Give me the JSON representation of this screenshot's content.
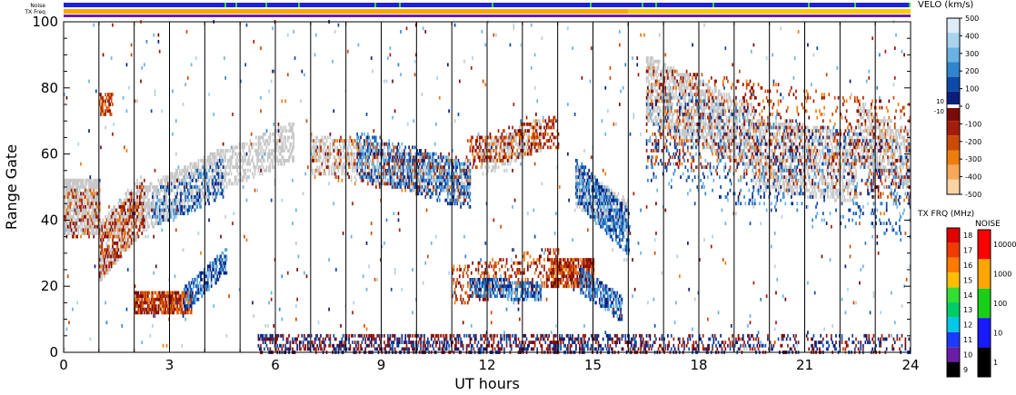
{
  "status_bars": {
    "noise_label": "Noise",
    "txfreq_label": "TX Freq"
  },
  "chart_data": {
    "type": "heatmap",
    "title": "",
    "xlabel": "UT hours",
    "ylabel": "Range Gate",
    "xlim": [
      0,
      24
    ],
    "ylim": [
      0,
      100
    ],
    "x_ticks": [
      "0",
      "3",
      "6",
      "9",
      "12",
      "15",
      "18",
      "21",
      "24"
    ],
    "x_tick_values": [
      0,
      3,
      6,
      9,
      12,
      15,
      18,
      21,
      24
    ],
    "y_ticks": [
      "0",
      "20",
      "40",
      "60",
      "80",
      "100"
    ],
    "y_tick_values": [
      0,
      20,
      40,
      60,
      80,
      100
    ],
    "hour_gridlines": true,
    "velocity_colorbar": {
      "label": "VELO (km/s)",
      "ticks": [
        "500",
        "400",
        "300",
        "200",
        "100",
        "0",
        "-100",
        "-200",
        "-300",
        "-400",
        "-500"
      ],
      "tick_values": [
        500,
        400,
        300,
        200,
        100,
        0,
        -100,
        -200,
        -300,
        -400,
        -500
      ],
      "zero_band_labels": [
        "10",
        "-10"
      ],
      "colors": [
        "#dcecf8",
        "#a8d3ef",
        "#6ab2e2",
        "#2f86cf",
        "#0b4aa8",
        "#0a1e7a",
        "#7a0a0a",
        "#a41c0a",
        "#cc4a08",
        "#ee7d10",
        "#f7a85a",
        "#fbd4a4"
      ]
    },
    "txfreq_colorbar": {
      "label": "TX FRQ (MHz)",
      "ticks": [
        "18",
        "17",
        "16",
        "15",
        "14",
        "13",
        "12",
        "11",
        "10",
        "9"
      ],
      "colors": [
        "#e00000",
        "#f03a00",
        "#ff7a00",
        "#ffbe00",
        "#33dd33",
        "#00cc66",
        "#00c8e8",
        "#1a3cff",
        "#6a1ea8",
        "#000000"
      ]
    },
    "noise_colorbar": {
      "label": "NOISE",
      "ticks": [
        "10000",
        "1000",
        "100",
        "10",
        "1"
      ],
      "colors": [
        "#ff0000",
        "#ffa500",
        "#19d019",
        "#1919ff",
        "#000000"
      ]
    },
    "regions": [
      {
        "kind": "ground_scatter",
        "hours": [
          0.0,
          1.0
        ],
        "gate_center": [
          44,
          44
        ],
        "gate_halfwidth": 8,
        "density": 0.8
      },
      {
        "kind": "ground_scatter",
        "hours": [
          1.0,
          2.2
        ],
        "gate_center": [
          30,
          45
        ],
        "gate_halfwidth": 8,
        "density": 0.6
      },
      {
        "kind": "ground_scatter",
        "hours": [
          2.2,
          4.5
        ],
        "gate_center": [
          43,
          55
        ],
        "gate_halfwidth": 6,
        "density": 0.6
      },
      {
        "kind": "ground_scatter",
        "hours": [
          4.5,
          6.5
        ],
        "gate_center": [
          55,
          64
        ],
        "gate_halfwidth": 5,
        "density": 0.5
      },
      {
        "kind": "ground_scatter",
        "hours": [
          7.0,
          11.5
        ],
        "gate_center": [
          60,
          52
        ],
        "gate_halfwidth": 5,
        "density": 0.5
      },
      {
        "kind": "ground_scatter",
        "hours": [
          11.8,
          13.5
        ],
        "gate_center": [
          58,
          66
        ],
        "gate_halfwidth": 4,
        "density": 0.5
      },
      {
        "kind": "ground_scatter",
        "hours": [
          14.5,
          16.0
        ],
        "gate_center": [
          50,
          40
        ],
        "gate_halfwidth": 5,
        "density": 0.6
      },
      {
        "kind": "ground_scatter",
        "hours": [
          16.5,
          19.5
        ],
        "gate_center": [
          80,
          65
        ],
        "gate_halfwidth": 9,
        "density": 0.55
      },
      {
        "kind": "ground_scatter",
        "hours": [
          19.5,
          22.5
        ],
        "gate_center": [
          60,
          56
        ],
        "gate_halfwidth": 10,
        "density": 0.45
      },
      {
        "kind": "ground_scatter",
        "hours": [
          22.5,
          24.0
        ],
        "gate_center": [
          66,
          58
        ],
        "gate_halfwidth": 8,
        "density": 0.5
      },
      {
        "kind": "negative",
        "hours": [
          0.0,
          1.0
        ],
        "gate_center": [
          42,
          42
        ],
        "gate_halfwidth": 7,
        "density": 0.22
      },
      {
        "kind": "negative",
        "hours": [
          1.0,
          2.3
        ],
        "gate_center": [
          30,
          45
        ],
        "gate_halfwidth": 7,
        "density": 0.4
      },
      {
        "kind": "negative",
        "hours": [
          1.0,
          1.4
        ],
        "gate_center": [
          75,
          75
        ],
        "gate_halfwidth": 3,
        "density": 0.6
      },
      {
        "kind": "negative",
        "hours": [
          2.0,
          3.6
        ],
        "gate_center": [
          15,
          15
        ],
        "gate_halfwidth": 3,
        "density": 0.85
      },
      {
        "kind": "positive",
        "hours": [
          3.4,
          4.6
        ],
        "gate_center": [
          16,
          28
        ],
        "gate_halfwidth": 3,
        "density": 0.6
      },
      {
        "kind": "positive",
        "hours": [
          2.5,
          4.5
        ],
        "gate_center": [
          43,
          53
        ],
        "gate_halfwidth": 5,
        "density": 0.3
      },
      {
        "kind": "positive",
        "hours": [
          8.3,
          11.5
        ],
        "gate_center": [
          60,
          50
        ],
        "gate_halfwidth": 6,
        "density": 0.42
      },
      {
        "kind": "negative",
        "hours": [
          7.0,
          11.5
        ],
        "gate_center": [
          60,
          52
        ],
        "gate_halfwidth": 6,
        "density": 0.12
      },
      {
        "kind": "negative",
        "hours": [
          11.5,
          14.0
        ],
        "gate_center": [
          60,
          67
        ],
        "gate_halfwidth": 4,
        "density": 0.35
      },
      {
        "kind": "negative",
        "hours": [
          11.0,
          14.0
        ],
        "gate_center": [
          20,
          26
        ],
        "gate_halfwidth": 5,
        "density": 0.25
      },
      {
        "kind": "negative",
        "hours": [
          13.8,
          15.0
        ],
        "gate_center": [
          24,
          24
        ],
        "gate_halfwidth": 4,
        "density": 0.8
      },
      {
        "kind": "positive",
        "hours": [
          11.5,
          13.5
        ],
        "gate_center": [
          20,
          18
        ],
        "gate_halfwidth": 2,
        "density": 0.6
      },
      {
        "kind": "positive",
        "hours": [
          14.5,
          16.0
        ],
        "gate_center": [
          52,
          36
        ],
        "gate_halfwidth": 6,
        "density": 0.55
      },
      {
        "kind": "positive",
        "hours": [
          14.6,
          15.8
        ],
        "gate_center": [
          22,
          13
        ],
        "gate_halfwidth": 3,
        "density": 0.6
      },
      {
        "kind": "negative",
        "hours": [
          16.5,
          24.0
        ],
        "gate_center": [
          72,
          60
        ],
        "gate_halfwidth": 14,
        "density": 0.14
      },
      {
        "kind": "positive",
        "hours": [
          16.5,
          24.0
        ],
        "gate_center": [
          66,
          48
        ],
        "gate_halfwidth": 14,
        "density": 0.1
      },
      {
        "kind": "mixed_low",
        "hours": [
          5.5,
          16.5
        ],
        "gate_center": [
          2,
          2
        ],
        "gate_halfwidth": 3,
        "density": 0.45
      },
      {
        "kind": "mixed_low",
        "hours": [
          16.5,
          24.0
        ],
        "gate_center": [
          2,
          2
        ],
        "gate_halfwidth": 3,
        "density": 0.25
      },
      {
        "kind": "sparse",
        "hours": [
          0.0,
          24.0
        ],
        "gate_center": [
          50,
          50
        ],
        "gate_halfwidth": 50,
        "density": 0.01
      }
    ]
  },
  "noise_strip": {
    "default_color": "#1f1fe0",
    "speck_color": "#33dd33",
    "speck_density": 0.05
  },
  "txfreq_strip": [
    {
      "hours": [
        0,
        16
      ],
      "color": "#ffa500"
    },
    {
      "hours": [
        16,
        24
      ],
      "color": "#ffc800"
    }
  ],
  "txfreq_under": {
    "color": "#6a1ea8"
  }
}
